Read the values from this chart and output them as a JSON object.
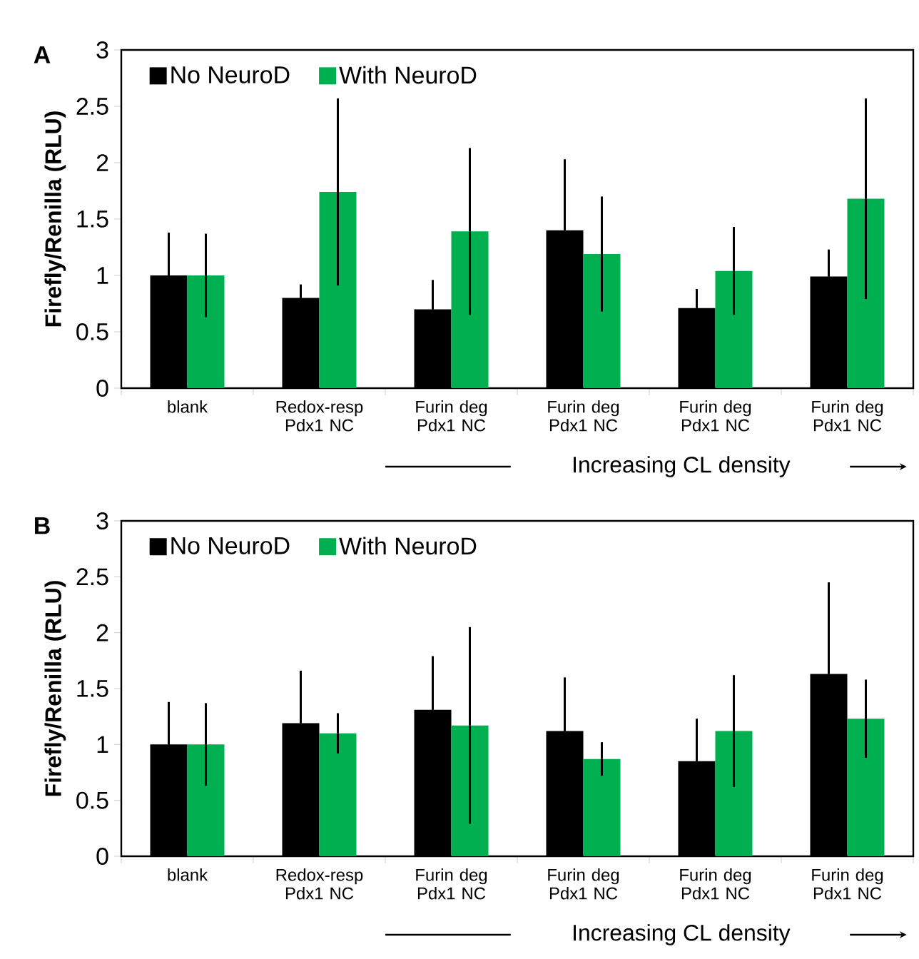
{
  "chart_data": [
    {
      "type": "bar",
      "title": "A",
      "ylabel": "Firefly/Renilla (RLU)",
      "categories": [
        "blank",
        "Redox-resp Pdx1 NC",
        "Furin deg Pdx1 NC",
        "Furin deg Pdx1 NC",
        "Furin deg Pdx1 NC",
        "Furin deg Pdx1 NC"
      ],
      "series": [
        {
          "name": "No NeuroD",
          "color": "#000000",
          "values": [
            1.0,
            0.8,
            0.7,
            1.4,
            0.71,
            0.99
          ],
          "errors": [
            0.38,
            0.12,
            0.26,
            0.63,
            0.17,
            0.24
          ]
        },
        {
          "name": "With NeuroD",
          "color": "#00b050",
          "values": [
            1.0,
            1.74,
            1.39,
            1.19,
            1.04,
            1.68
          ],
          "errors": [
            0.37,
            0.83,
            0.74,
            0.51,
            0.39,
            0.89
          ]
        }
      ],
      "ylim": [
        0,
        3
      ],
      "yticks": [
        0,
        0.5,
        1,
        1.5,
        2,
        2.5,
        3
      ],
      "legend": "top left",
      "annotations": [
        "Increasing CL density"
      ]
    },
    {
      "type": "bar",
      "title": "B",
      "ylabel": "Firefly/Renilla (RLU)",
      "categories": [
        "blank",
        "Redox-resp Pdx1 NC",
        "Furin deg Pdx1 NC",
        "Furin deg Pdx1 NC",
        "Furin deg Pdx1 NC",
        "Furin deg Pdx1 NC"
      ],
      "series": [
        {
          "name": "No NeuroD",
          "color": "#000000",
          "values": [
            1.0,
            1.19,
            1.31,
            1.12,
            0.85,
            1.63
          ],
          "errors": [
            0.38,
            0.47,
            0.48,
            0.48,
            0.38,
            0.82
          ]
        },
        {
          "name": "With NeuroD",
          "color": "#00b050",
          "values": [
            1.0,
            1.1,
            1.17,
            0.87,
            1.12,
            1.23
          ],
          "errors": [
            0.37,
            0.18,
            0.88,
            0.15,
            0.5,
            0.35
          ]
        }
      ],
      "ylim": [
        0,
        3
      ],
      "yticks": [
        0,
        0.5,
        1,
        1.5,
        2,
        2.5,
        3
      ],
      "legend": "top left",
      "annotations": [
        "Increasing CL density"
      ]
    }
  ]
}
